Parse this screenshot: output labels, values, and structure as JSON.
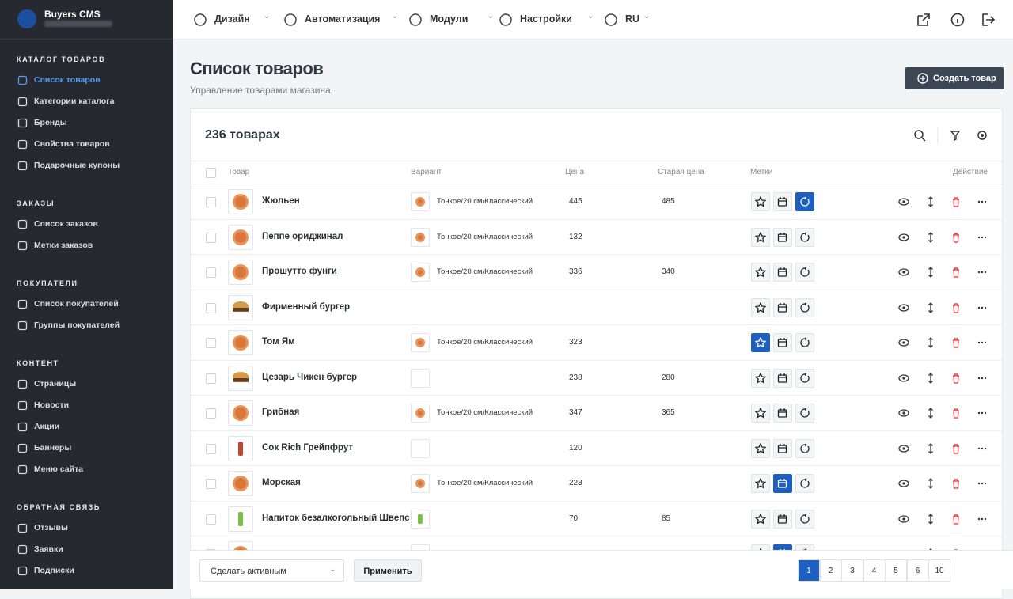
{
  "sidebar": {
    "brand": "Buyers CMS",
    "sections": [
      {
        "title": "КАТАЛОГ ТОВАРОВ",
        "items": [
          {
            "label": "Список товаров",
            "active": true
          },
          {
            "label": "Категории каталога"
          },
          {
            "label": "Бренды"
          },
          {
            "label": "Свойства товаров"
          },
          {
            "label": "Подарочные купоны"
          }
        ]
      },
      {
        "title": "ЗАКАЗЫ",
        "items": [
          {
            "label": "Список заказов"
          },
          {
            "label": "Метки заказов"
          }
        ]
      },
      {
        "title": "ПОКУПАТЕЛИ",
        "items": [
          {
            "label": "Список покупателей"
          },
          {
            "label": "Группы покупателей"
          }
        ]
      },
      {
        "title": "КОНТЕНТ",
        "items": [
          {
            "label": "Страницы"
          },
          {
            "label": "Новости"
          },
          {
            "label": "Акции"
          },
          {
            "label": "Баннеры"
          },
          {
            "label": "Меню сайта"
          }
        ]
      },
      {
        "title": "ОБРАТНАЯ СВЯЗЬ",
        "items": [
          {
            "label": "Отзывы"
          },
          {
            "label": "Заявки"
          },
          {
            "label": "Подписки"
          }
        ]
      }
    ]
  },
  "topnav": {
    "items": [
      "Дизайн",
      "Автоматизация",
      "Модули",
      "Настройки",
      "RU"
    ]
  },
  "header": {
    "title": "Список товаров",
    "subtitle": "Управление товарами магазина.",
    "create_button": "Создать товар"
  },
  "table": {
    "count": "236 товарах",
    "columns": [
      "Товар",
      "Вариант",
      "Цена",
      "Старая цена",
      "Метки",
      "Действие"
    ],
    "rows": [
      {
        "name": "Жюльен",
        "variant": "Тонкое/20 см/Классический",
        "price": 445,
        "old_price": 485,
        "tags": [
          false,
          false,
          true
        ]
      },
      {
        "name": "Пеппе ориджинал",
        "variant": "Тонкое/20 см/Классический",
        "price": 132,
        "tags": [
          false,
          false,
          false
        ]
      },
      {
        "name": "Прошутто фунги",
        "variant": "Тонкое/20 см/Классический",
        "price": 336,
        "old_price": 340,
        "tags": [
          false,
          false,
          false
        ]
      },
      {
        "name": "Фирменный бургер",
        "tags": [
          false,
          false,
          false
        ]
      },
      {
        "name": "Том Ям",
        "variant": "Тонкое/20 см/Классический",
        "price": 323,
        "tags": [
          true,
          false,
          false
        ]
      },
      {
        "name": "Цезарь Чикен бургер",
        "price": 238,
        "old_price": 280,
        "tags": [
          false,
          false,
          false
        ]
      },
      {
        "name": "Грибная",
        "variant": "Тонкое/20 см/Классический",
        "price": 347,
        "old_price": 365,
        "tags": [
          false,
          false,
          false
        ]
      },
      {
        "name": "Сок Rich Грейпфрут",
        "price": 120,
        "tags": [
          false,
          false,
          false
        ]
      },
      {
        "name": "Морская",
        "variant": "Тонкое/20 см/Классический",
        "price": 223,
        "tags": [
          false,
          true,
          false
        ]
      },
      {
        "name": "Напиток безалкогольный Швепс",
        "price": 70,
        "old_price": 85,
        "tags": [
          false,
          false,
          false
        ]
      }
    ]
  },
  "footer": {
    "action_select": "Сделать активным",
    "apply_button": "Применить",
    "pages": [
      1,
      2,
      3,
      4,
      5,
      6,
      10
    ],
    "current_page": 1
  }
}
